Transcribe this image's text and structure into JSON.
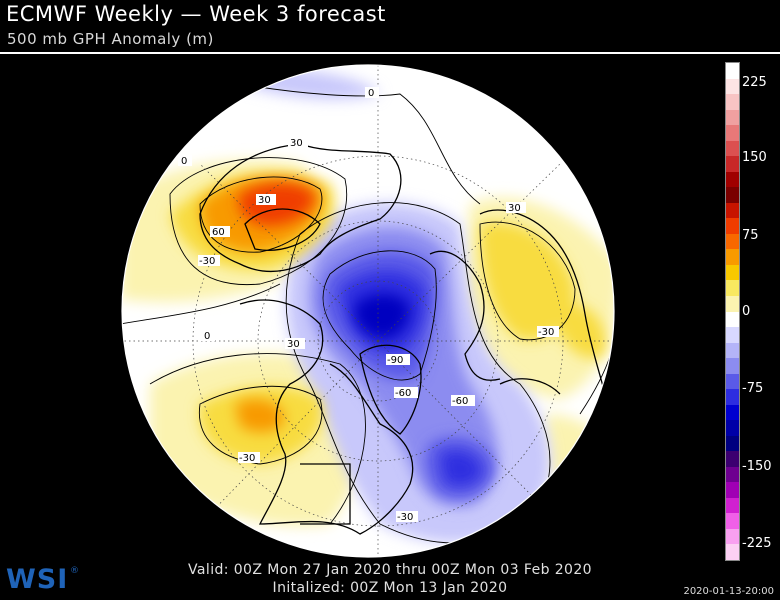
{
  "header": {
    "title": "ECMWF Weekly — Week 3 forecast",
    "subtitle": "500 mb GPH Anomaly (m)"
  },
  "map": {
    "projection": "north-polar-stereographic",
    "contour_labels": [
      {
        "id": "l0a",
        "text": "0"
      },
      {
        "id": "l0b",
        "text": "0"
      },
      {
        "id": "l0c",
        "text": "0"
      },
      {
        "id": "l30a",
        "text": "30"
      },
      {
        "id": "l60",
        "text": "60"
      },
      {
        "id": "lm30a",
        "text": "-30"
      },
      {
        "id": "l30b",
        "text": "30"
      },
      {
        "id": "l30c",
        "text": "30"
      },
      {
        "id": "l30d",
        "text": "-30"
      },
      {
        "id": "lm90",
        "text": "-90"
      },
      {
        "id": "lm60a",
        "text": "-60"
      },
      {
        "id": "lm60b",
        "text": "-60"
      },
      {
        "id": "lm30b",
        "text": "-30"
      },
      {
        "id": "lm30c",
        "text": "-30"
      },
      {
        "id": "l30e",
        "text": "30"
      }
    ]
  },
  "colorbar": {
    "labels": [
      "225",
      "150",
      "75",
      "0",
      "-75",
      "-150",
      "-225"
    ],
    "colors": [
      "#ffffff",
      "#fde4e4",
      "#f8c4c4",
      "#f0a0a0",
      "#e87878",
      "#dc5050",
      "#c82828",
      "#a00000",
      "#7a0000",
      "#c81400",
      "#f03c00",
      "#f86800",
      "#f89a00",
      "#f8c800",
      "#f8e860",
      "#fbf3b0",
      "#ffffff",
      "#d8d8ff",
      "#b4b4f8",
      "#8c8cf0",
      "#5a5ae8",
      "#2d2de0",
      "#0000d0",
      "#0000a8",
      "#000080",
      "#3c0070",
      "#6e0090",
      "#a000b4",
      "#d020d0",
      "#f060e8",
      "#f8a0f0",
      "#fcd0f4"
    ]
  },
  "footer": {
    "valid": "Valid: 00Z Mon 27 Jan 2020 thru 00Z Mon 03 Feb 2020",
    "initialized": "Initalized: 00Z Mon 13 Jan 2020",
    "timestamp": "2020-01-13-20:00",
    "logo": "WSI",
    "logo_mark": "®"
  }
}
